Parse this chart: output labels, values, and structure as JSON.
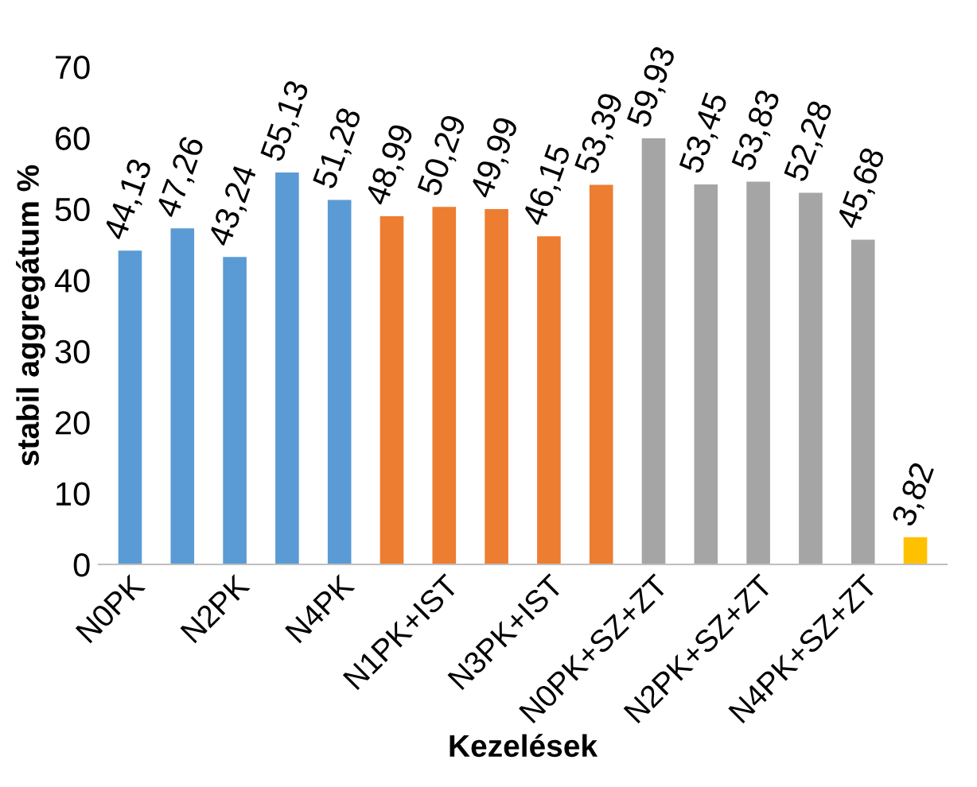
{
  "chart_data": {
    "type": "bar",
    "xlabel": "Kezelések",
    "ylabel": "stabil aggregátum %",
    "categories": [
      "N0PK",
      null,
      "N2PK",
      null,
      "N4PK",
      null,
      "N1PK+IST",
      null,
      "N3PK+IST",
      null,
      "N0PK+SZ+ZT",
      null,
      "N2PK+SZ+ZT",
      null,
      "N4PK+SZ+ZT",
      null
    ],
    "values": [
      44.13,
      47.26,
      43.24,
      55.13,
      51.28,
      48.99,
      50.29,
      49.99,
      46.15,
      53.39,
      59.93,
      53.45,
      53.83,
      52.28,
      45.68,
      3.82
    ],
    "value_labels": [
      "44,13",
      "47,26",
      "43,24",
      "55,13",
      "51,28",
      "48,99",
      "50,29",
      "49,99",
      "46,15",
      "53,39",
      "59,93",
      "53,45",
      "53,83",
      "52,28",
      "45,68",
      "3,82"
    ],
    "colors": [
      "#5b9bd5",
      "#5b9bd5",
      "#5b9bd5",
      "#5b9bd5",
      "#5b9bd5",
      "#ed7d31",
      "#ed7d31",
      "#ed7d31",
      "#ed7d31",
      "#ed7d31",
      "#a5a5a5",
      "#a5a5a5",
      "#a5a5a5",
      "#a5a5a5",
      "#a5a5a5",
      "#ffc000"
    ],
    "ylim": [
      0,
      70
    ],
    "yticks": [
      0,
      10,
      20,
      30,
      40,
      50,
      60,
      70
    ],
    "grid": false,
    "legend": false
  }
}
